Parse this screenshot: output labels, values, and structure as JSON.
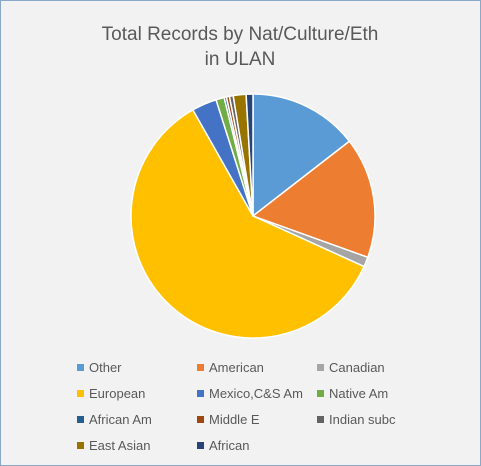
{
  "chart_data": {
    "type": "pie",
    "title_lines": [
      "Total Records by Nat/Culture/Eth",
      "in ULAN"
    ],
    "legend_position": "bottom",
    "categories": [
      "Other",
      "American",
      "Canadian",
      "European",
      "Mexico,C&S Am",
      "Native Am",
      "African Am",
      "Middle E",
      "Indian subc",
      "East Asian",
      "African"
    ],
    "values": [
      14.5,
      16.0,
      1.3,
      60.0,
      3.3,
      1.1,
      0.3,
      0.4,
      0.5,
      1.7,
      0.9
    ],
    "value_unit": "percent (estimated)",
    "colors": [
      "#5b9bd5",
      "#ed7d31",
      "#a5a5a5",
      "#ffc000",
      "#4472c4",
      "#70ad47",
      "#255e91",
      "#9e480e",
      "#636363",
      "#997300",
      "#264478"
    ]
  }
}
